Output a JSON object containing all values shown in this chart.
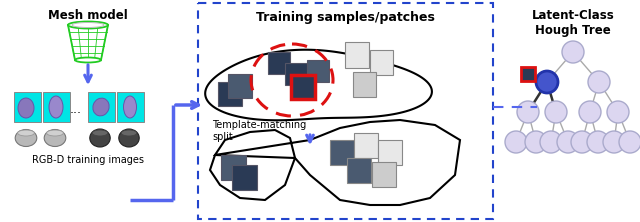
{
  "title_left": "Mesh model",
  "title_middle": "Training samples/patches",
  "title_right": "Latent-Class\nHough Tree",
  "label_bottom_left": "RGB-D training images",
  "label_template": "Template-matching\nsplit",
  "bg_color": "#ffffff",
  "arrow_color": "#5566ee",
  "tree_node_color": "#dcd6f0",
  "tree_node_ec": "#aaaacc",
  "tree_highlight_color": "#4455cc",
  "tree_highlight_ec": "#2233aa",
  "red_box_color": "#dd1111",
  "dashed_box_color": "#2244cc",
  "cyan_bg": "#00e5e5",
  "green_model_color": "#22cc22",
  "dashed_ellipse_color": "#dd1111",
  "patch_dark": "#2a3a55",
  "patch_medium": "#4a5a70",
  "patch_light": "#cccccc",
  "patch_white": "#e8e8e8"
}
